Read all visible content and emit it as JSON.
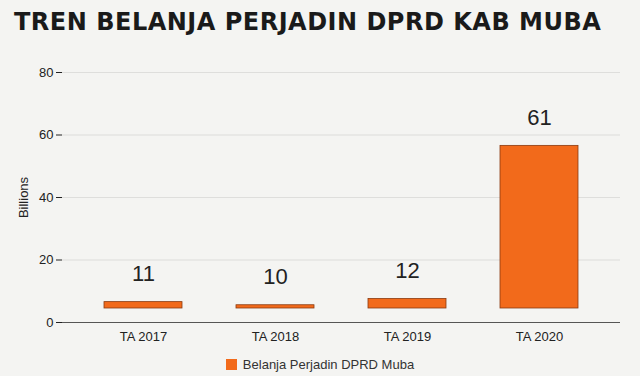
{
  "chart_data": {
    "type": "bar",
    "title": "TREN BELANJA PERJADIN DPRD KAB MUBA",
    "y_label": "Billions",
    "categories": [
      "TA 2017",
      "TA 2018",
      "TA 2019",
      "TA 2020"
    ],
    "series": [
      {
        "name": "Belanja Perjadin DPRD Muba",
        "color": "#f26a1b",
        "values": [
          11,
          10,
          12,
          61
        ]
      }
    ],
    "ylim": [
      0,
      80
    ],
    "yticks": [
      0,
      20,
      40,
      60,
      80
    ],
    "grid": true,
    "data_labels": true,
    "legend": "bottom"
  }
}
